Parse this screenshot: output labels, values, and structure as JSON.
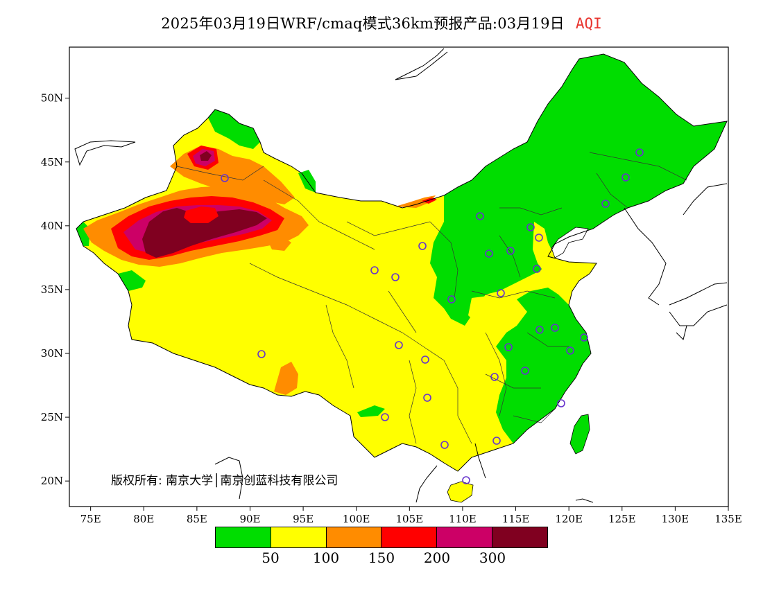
{
  "title": {
    "main": "2025年03月19日WRF/cmaq模式36km预报产品:03月19日",
    "variable": "AQI"
  },
  "map": {
    "lat_ticks": [
      "50N",
      "45N",
      "40N",
      "35N",
      "30N",
      "25N",
      "20N"
    ],
    "lon_ticks": [
      "75E",
      "80E",
      "85E",
      "90E",
      "95E",
      "100E",
      "105E",
      "110E",
      "115E",
      "120E",
      "125E",
      "130E",
      "135E"
    ],
    "extent": {
      "lon_min": 73,
      "lon_max": 135,
      "lat_min": 18,
      "lat_max": 54
    },
    "copyright": "版权所有: 南京大学│南京创蓝科技有限公司"
  },
  "legend": {
    "colors": [
      "#00dd00",
      "#ffff00",
      "#ff8c00",
      "#ff0000",
      "#cc0066",
      "#800020"
    ],
    "labels": [
      "50",
      "100",
      "150",
      "200",
      "300"
    ]
  },
  "colors": {
    "good": "#00dd00",
    "moderate": "#ffff00",
    "usg": "#ff8c00",
    "unhealthy": "#ff0000",
    "very_unhealthy": "#cc0066",
    "hazardous": "#800020",
    "station_marker": "#6633cc"
  }
}
